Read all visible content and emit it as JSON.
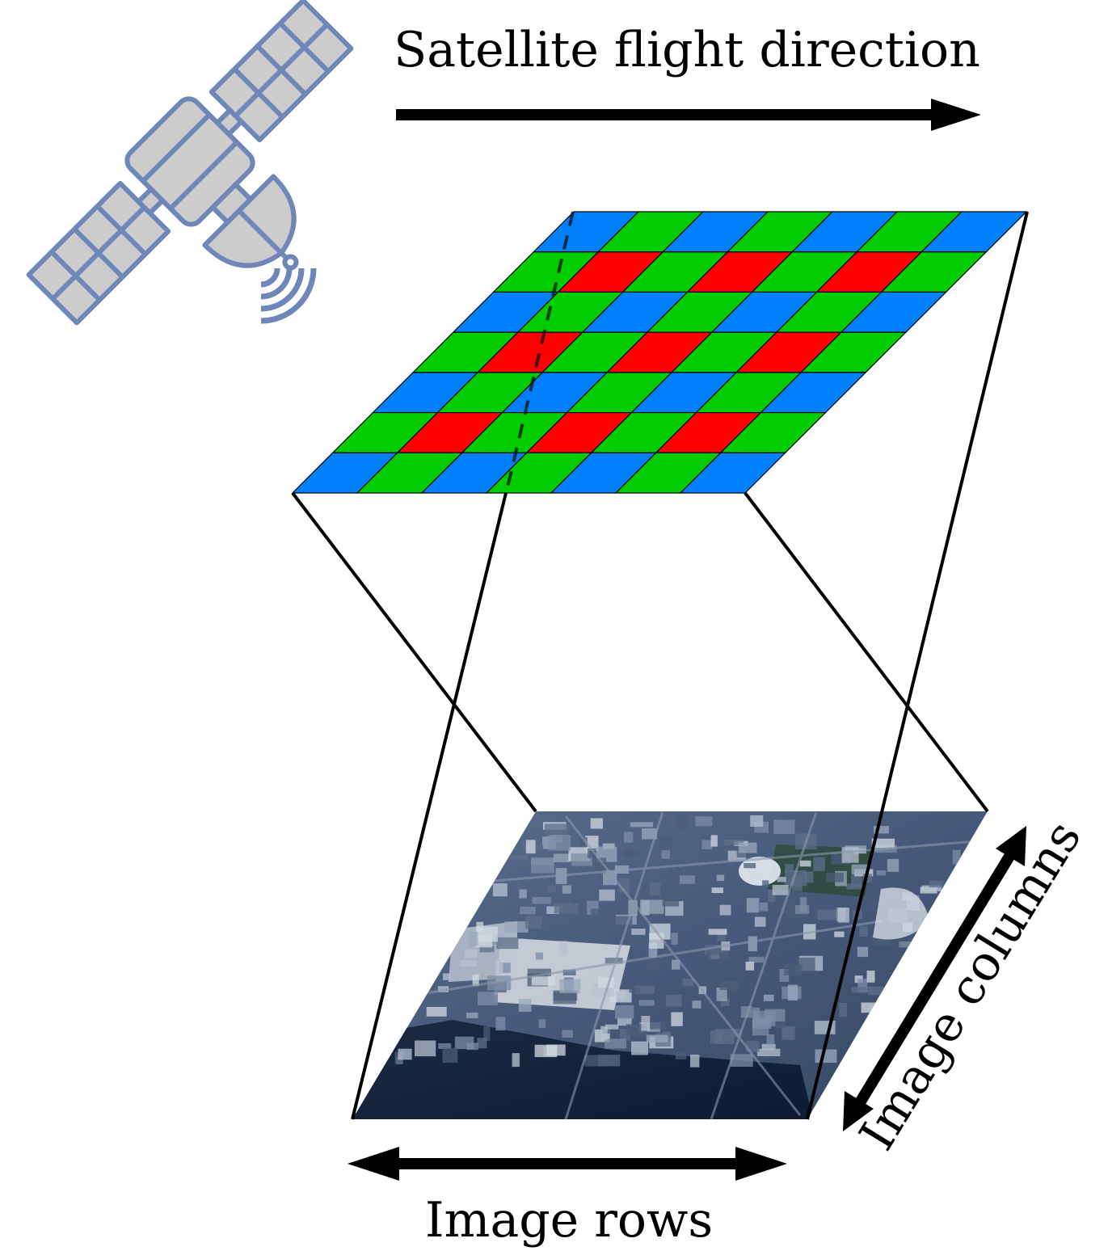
{
  "labels": {
    "flight_direction": "Satellite flight direction",
    "image_rows": "Image rows",
    "image_columns": "Image columns"
  },
  "icons": {
    "satellite": "satellite-icon",
    "signal": "signal-waves-icon"
  },
  "colors": {
    "bayer_blue": "#0080ff",
    "bayer_green": "#00cc00",
    "bayer_red": "#ff0000",
    "satellite_fill": "#cccccc",
    "satellite_stroke": "#6f86b8",
    "lines": "#000000"
  },
  "sensor_grid": {
    "rows": 7,
    "cols": 7,
    "pattern": [
      [
        "B",
        "G",
        "B",
        "G",
        "B",
        "G",
        "B"
      ],
      [
        "G",
        "R",
        "G",
        "R",
        "G",
        "R",
        "G"
      ],
      [
        "B",
        "G",
        "B",
        "G",
        "B",
        "G",
        "B"
      ],
      [
        "G",
        "R",
        "G",
        "R",
        "G",
        "R",
        "G"
      ],
      [
        "B",
        "G",
        "B",
        "G",
        "B",
        "G",
        "B"
      ],
      [
        "G",
        "R",
        "G",
        "R",
        "G",
        "R",
        "G"
      ],
      [
        "B",
        "G",
        "B",
        "G",
        "B",
        "G",
        "B"
      ]
    ]
  }
}
